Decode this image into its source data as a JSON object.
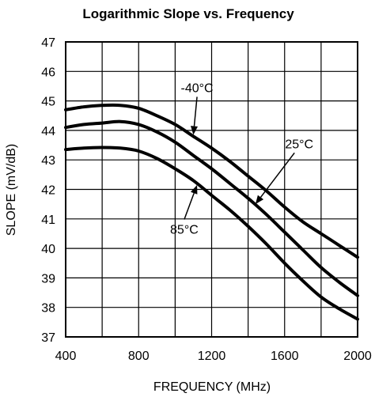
{
  "chart_data": {
    "type": "line",
    "title": "Logarithmic Slope vs. Frequency",
    "xlabel": "FREQUENCY (MHz)",
    "ylabel": "SLOPE (mV/dB)",
    "xlim": [
      400,
      2000
    ],
    "ylim": [
      37,
      47
    ],
    "x_ticks": [
      400,
      800,
      1200,
      1600,
      2000
    ],
    "y_ticks": [
      37,
      38,
      39,
      40,
      41,
      42,
      43,
      44,
      45,
      46,
      47
    ],
    "x_minor_grid_step": 200,
    "grid": true,
    "series": [
      {
        "name": "-40°C",
        "x": [
          400,
          500,
          600,
          700,
          800,
          900,
          1000,
          1100,
          1200,
          1300,
          1400,
          1500,
          1600,
          1700,
          1800,
          1900,
          2000
        ],
        "y": [
          44.7,
          44.8,
          44.85,
          44.85,
          44.75,
          44.5,
          44.2,
          43.8,
          43.4,
          42.95,
          42.45,
          41.95,
          41.4,
          40.9,
          40.5,
          40.1,
          39.7
        ]
      },
      {
        "name": "25°C",
        "x": [
          400,
          500,
          600,
          700,
          800,
          900,
          1000,
          1100,
          1200,
          1300,
          1400,
          1500,
          1600,
          1700,
          1800,
          1900,
          2000
        ],
        "y": [
          44.1,
          44.2,
          44.25,
          44.3,
          44.2,
          43.95,
          43.6,
          43.15,
          42.7,
          42.2,
          41.7,
          41.15,
          40.55,
          39.95,
          39.35,
          38.85,
          38.4
        ]
      },
      {
        "name": "85°C",
        "x": [
          400,
          500,
          600,
          700,
          800,
          900,
          1000,
          1100,
          1200,
          1300,
          1400,
          1500,
          1600,
          1700,
          1800,
          1900,
          2000
        ],
        "y": [
          43.35,
          43.4,
          43.42,
          43.4,
          43.3,
          43.05,
          42.7,
          42.3,
          41.8,
          41.3,
          40.75,
          40.15,
          39.5,
          38.9,
          38.35,
          37.95,
          37.6
        ]
      }
    ],
    "annotations": [
      {
        "text": "-40°C",
        "series": "-40°C",
        "label_at": [
          1120,
          45.3
        ],
        "arrow_to": [
          1100,
          43.85
        ]
      },
      {
        "text": "25°C",
        "series": "25°C",
        "label_at": [
          1680,
          43.4
        ],
        "arrow_to": [
          1440,
          41.5
        ]
      },
      {
        "text": "85°C",
        "series": "85°C",
        "label_at": [
          1050,
          40.5
        ],
        "arrow_to": [
          1120,
          42.15
        ]
      }
    ]
  }
}
